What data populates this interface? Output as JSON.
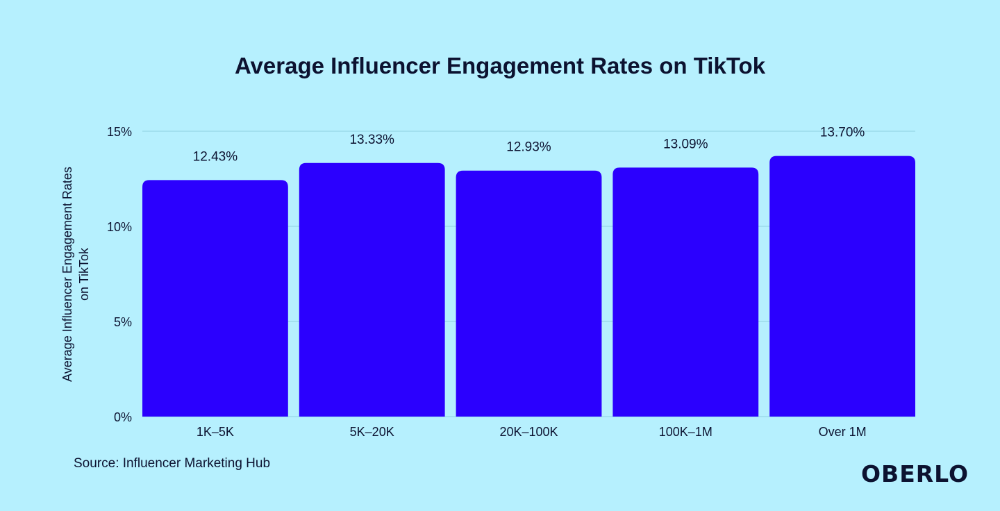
{
  "chart_data": {
    "type": "bar",
    "title": "Average Influencer Engagement Rates on TikTok",
    "ylabel": "Average Influencer Engagement Rates on TikTok",
    "xlabel": "",
    "categories": [
      "1K–5K",
      "5K–20K",
      "20K–100K",
      "100K–1M",
      "Over 1M"
    ],
    "values": [
      12.43,
      13.33,
      12.93,
      13.09,
      13.7
    ],
    "data_labels": [
      "12.43%",
      "13.33%",
      "12.93%",
      "13.09%",
      "13.70%"
    ],
    "ylim": [
      0,
      15
    ],
    "yticks": [
      0,
      5,
      10,
      15
    ],
    "ytick_labels": [
      "0%",
      "5%",
      "10%",
      "15%"
    ],
    "grid": true,
    "colors": {
      "bar": "#2b00fe",
      "background": "#b6f0fe",
      "grid": "#8fcfe0",
      "text": "#0c1230"
    }
  },
  "source": "Source: Influencer Marketing Hub",
  "logo": "OBERLO"
}
